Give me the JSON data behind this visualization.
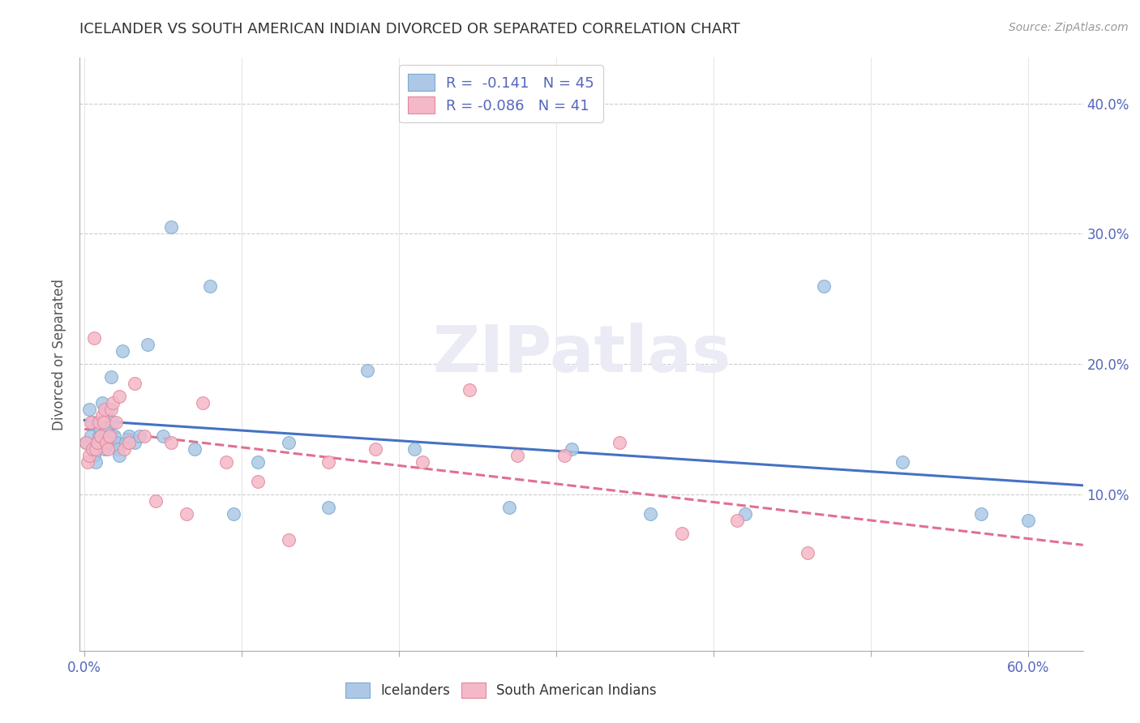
{
  "title": "ICELANDER VS SOUTH AMERICAN INDIAN DIVORCED OR SEPARATED CORRELATION CHART",
  "source": "Source: ZipAtlas.com",
  "ylabel": "Divorced or Separated",
  "color_blue": "#adc8e6",
  "color_pink": "#f5b8c8",
  "edge_blue": "#7aaad0",
  "edge_pink": "#e08898",
  "line_blue": "#4472c4",
  "line_pink": "#e07090",
  "xmin": -0.003,
  "xmax": 0.635,
  "ymin": -0.02,
  "ymax": 0.435,
  "ytick_vals": [
    0.1,
    0.2,
    0.3,
    0.4
  ],
  "xtick_vals": [
    0.0,
    0.1,
    0.2,
    0.3,
    0.4,
    0.5,
    0.6
  ],
  "watermark_text": "ZIPatlas",
  "legend1_label": "R =  -0.141   N = 45",
  "legend2_label": "R = -0.086   N = 41",
  "icelander_x": [
    0.001,
    0.003,
    0.004,
    0.005,
    0.006,
    0.007,
    0.008,
    0.009,
    0.01,
    0.011,
    0.012,
    0.013,
    0.014,
    0.015,
    0.016,
    0.017,
    0.018,
    0.019,
    0.02,
    0.021,
    0.022,
    0.024,
    0.026,
    0.028,
    0.032,
    0.035,
    0.04,
    0.05,
    0.055,
    0.07,
    0.08,
    0.095,
    0.11,
    0.13,
    0.155,
    0.18,
    0.21,
    0.27,
    0.31,
    0.36,
    0.42,
    0.47,
    0.52,
    0.57,
    0.6
  ],
  "icelander_y": [
    0.14,
    0.165,
    0.145,
    0.155,
    0.13,
    0.125,
    0.155,
    0.145,
    0.15,
    0.17,
    0.14,
    0.135,
    0.15,
    0.165,
    0.14,
    0.19,
    0.155,
    0.145,
    0.14,
    0.135,
    0.13,
    0.21,
    0.14,
    0.145,
    0.14,
    0.145,
    0.215,
    0.145,
    0.305,
    0.135,
    0.26,
    0.085,
    0.125,
    0.14,
    0.09,
    0.195,
    0.135,
    0.09,
    0.135,
    0.085,
    0.085,
    0.26,
    0.125,
    0.085,
    0.08
  ],
  "s_american_x": [
    0.001,
    0.002,
    0.003,
    0.004,
    0.005,
    0.006,
    0.007,
    0.008,
    0.009,
    0.01,
    0.011,
    0.012,
    0.013,
    0.014,
    0.015,
    0.016,
    0.017,
    0.018,
    0.02,
    0.022,
    0.025,
    0.028,
    0.032,
    0.038,
    0.045,
    0.055,
    0.065,
    0.075,
    0.09,
    0.11,
    0.13,
    0.155,
    0.185,
    0.215,
    0.245,
    0.275,
    0.305,
    0.34,
    0.38,
    0.415,
    0.46
  ],
  "s_american_y": [
    0.14,
    0.125,
    0.13,
    0.155,
    0.135,
    0.22,
    0.135,
    0.14,
    0.155,
    0.145,
    0.16,
    0.155,
    0.165,
    0.14,
    0.135,
    0.145,
    0.165,
    0.17,
    0.155,
    0.175,
    0.135,
    0.14,
    0.185,
    0.145,
    0.095,
    0.14,
    0.085,
    0.17,
    0.125,
    0.11,
    0.065,
    0.125,
    0.135,
    0.125,
    0.18,
    0.13,
    0.13,
    0.14,
    0.07,
    0.08,
    0.055
  ]
}
